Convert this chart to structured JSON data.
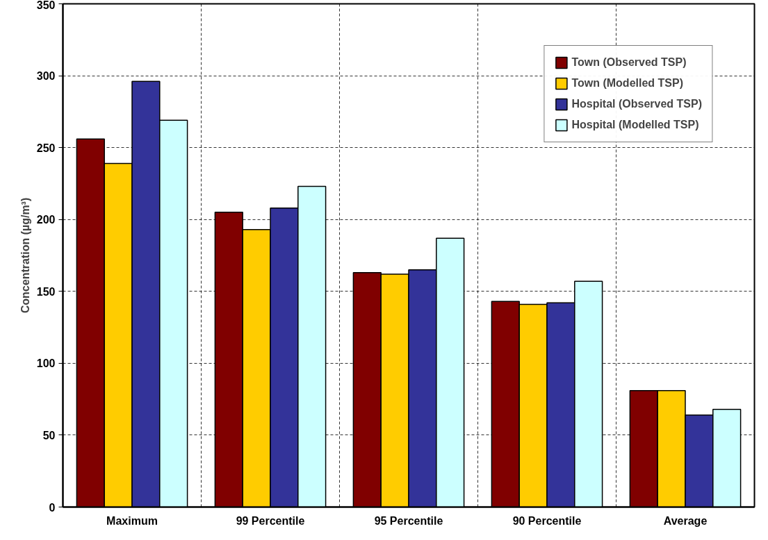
{
  "chart_data": {
    "type": "bar",
    "ylabel": "Concentration (µg/m³)",
    "categories": [
      "Maximum",
      "99 Percentile",
      "95 Percentile",
      "90 Percentile",
      "Average"
    ],
    "series": [
      {
        "name": "Town (Observed TSP)",
        "color": "#800000",
        "values": [
          256,
          205,
          163,
          143,
          81
        ]
      },
      {
        "name": "Town (Modelled TSP)",
        "color": "#ffcc00",
        "values": [
          239,
          193,
          162,
          141,
          81
        ]
      },
      {
        "name": "Hospital (Observed TSP)",
        "color": "#333399",
        "values": [
          296,
          208,
          165,
          142,
          64
        ]
      },
      {
        "name": "Hospital (Modelled TSP)",
        "color": "#ccffff",
        "values": [
          269,
          223,
          187,
          157,
          68
        ]
      }
    ],
    "ylim": [
      0,
      350
    ],
    "yticks": [
      0,
      50,
      100,
      150,
      200,
      250,
      300,
      350
    ],
    "grid": true,
    "legend": "top right"
  }
}
